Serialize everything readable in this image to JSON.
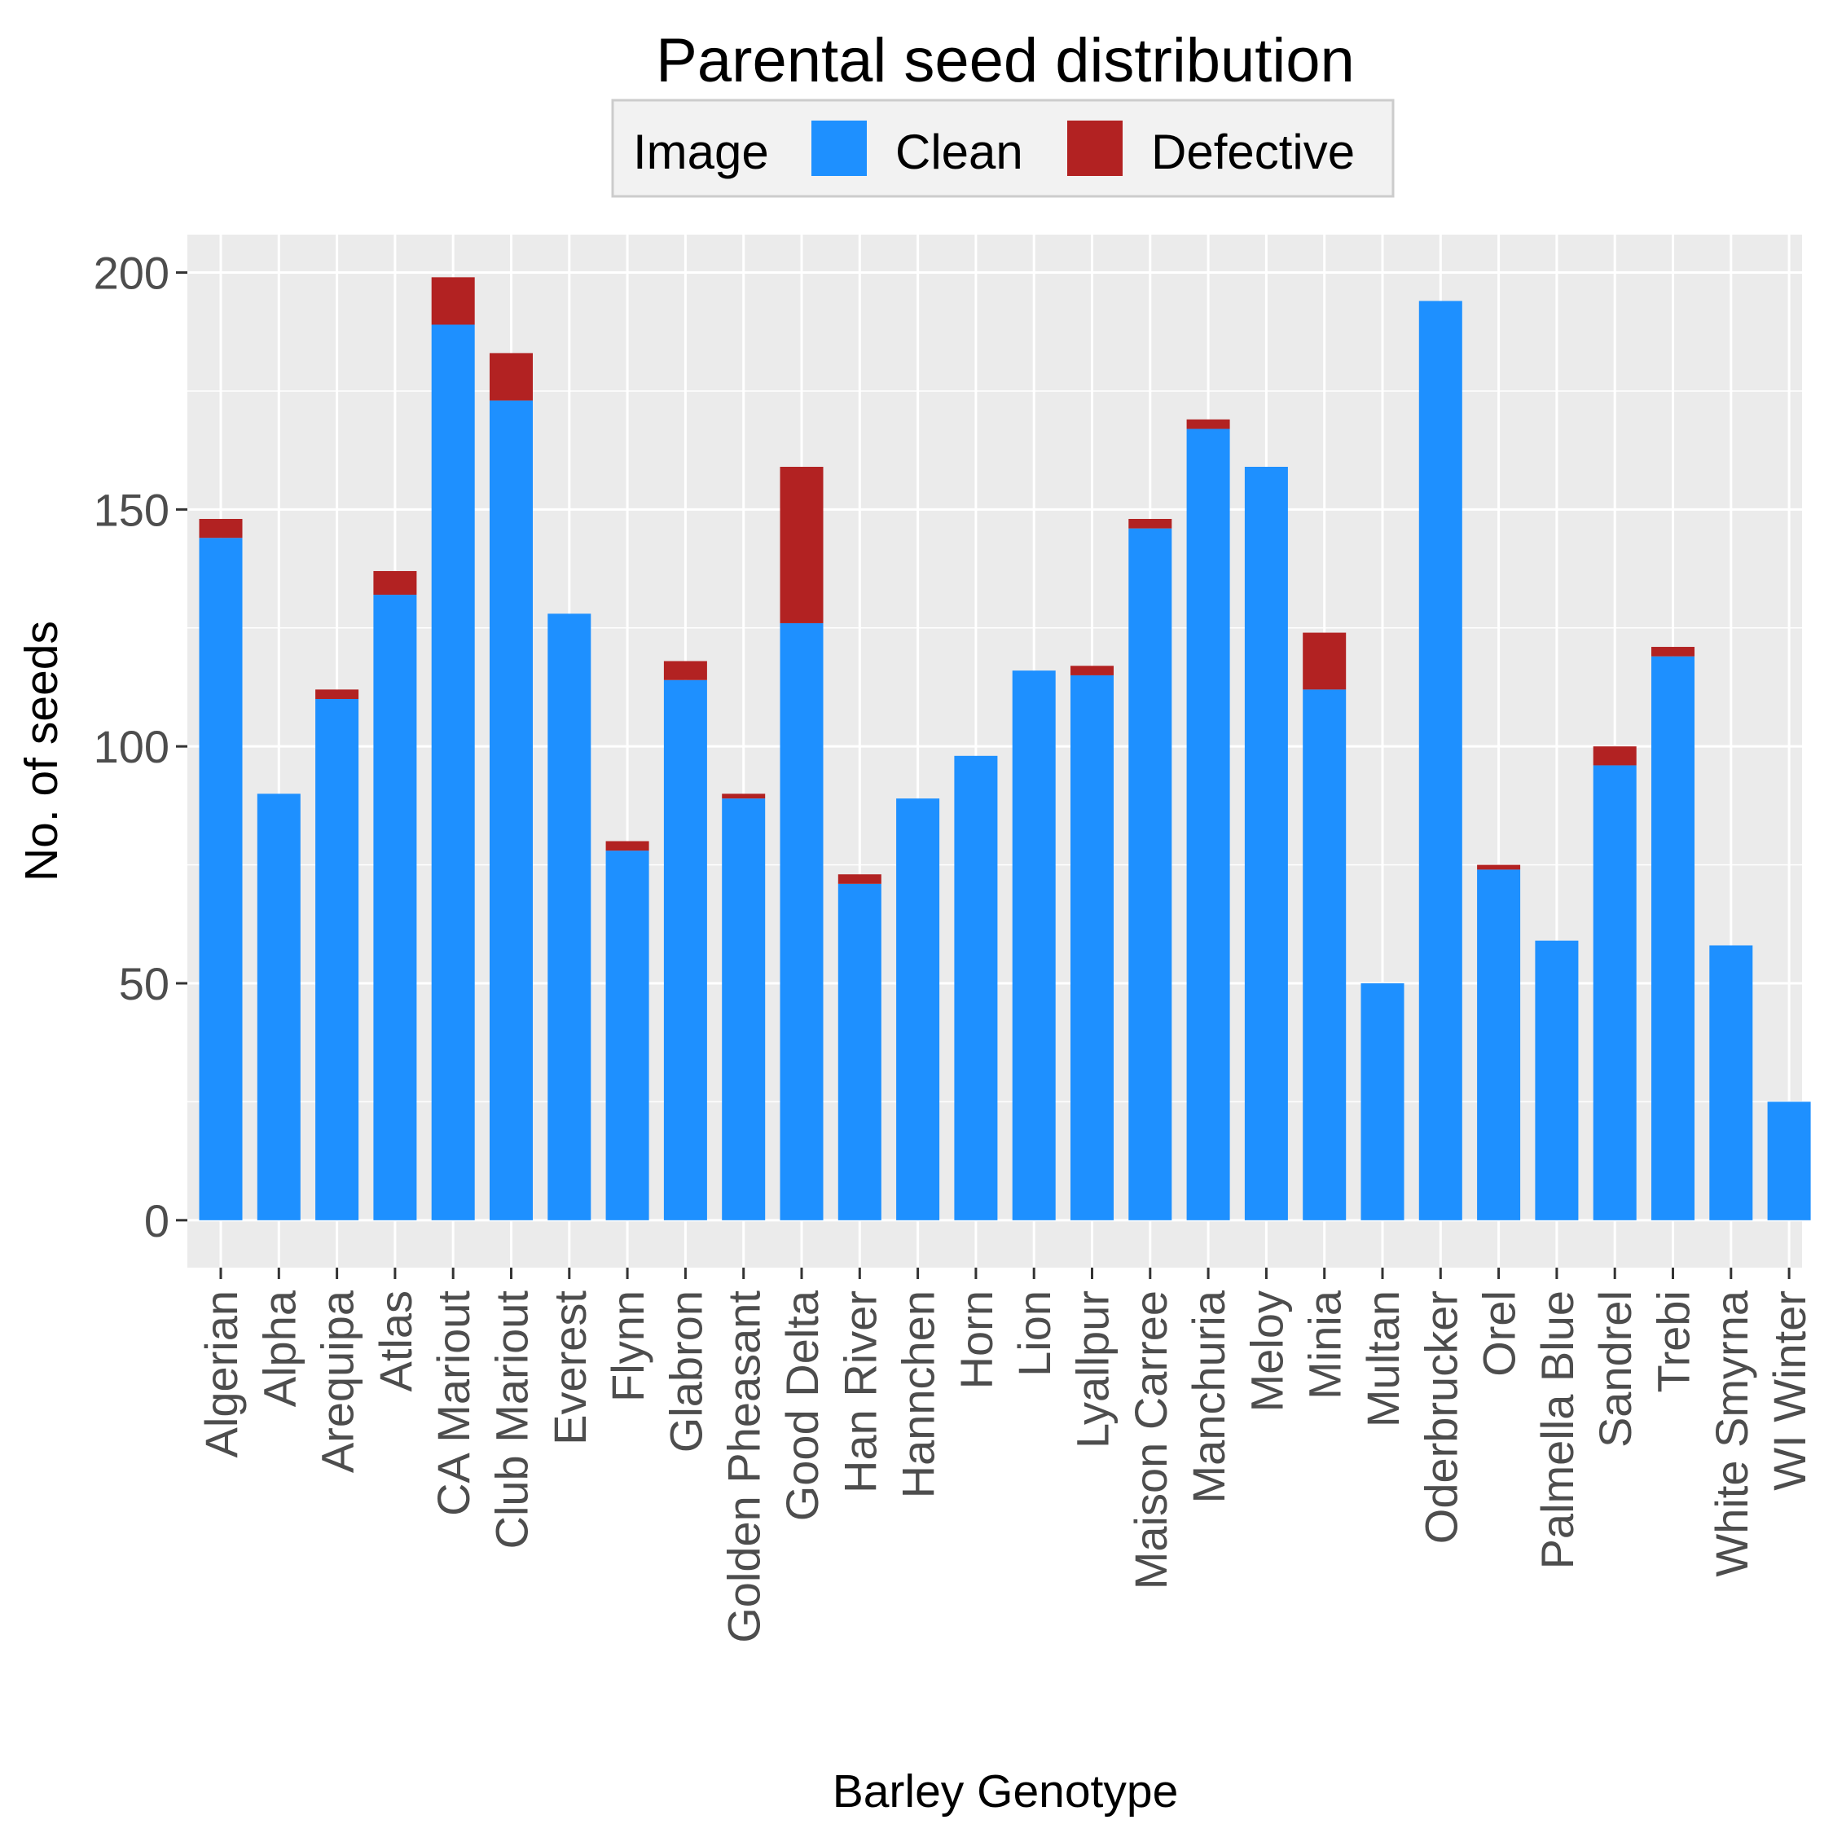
{
  "chart_data": {
    "type": "bar",
    "stacked": true,
    "title": "Parental seed distribution",
    "xlabel": "Barley Genotype",
    "ylabel": "No. of seeds",
    "ylim": [
      -10,
      208
    ],
    "yticks": [
      0,
      50,
      100,
      150,
      200
    ],
    "grid": true,
    "legend": {
      "title": "Image",
      "position": "top"
    },
    "categories": [
      "Algerian",
      "Alpha",
      "Arequipa",
      "Atlas",
      "CA Mariout",
      "Club Mariout",
      "Everest",
      "Flynn",
      "Glabron",
      "Golden Pheasant",
      "Good Delta",
      "Han River",
      "Hannchen",
      "Horn",
      "Lion",
      "Lyallpur",
      "Maison Carree",
      "Manchuria",
      "Meloy",
      "Minia",
      "Multan",
      "Oderbrucker",
      "Orel",
      "Palmella Blue",
      "Sandrel",
      "Trebi",
      "White Smyrna",
      "WI Winter"
    ],
    "series": [
      {
        "name": "Clean",
        "color": "#1E90FF",
        "values": [
          144,
          90,
          110,
          132,
          189,
          173,
          128,
          78,
          114,
          89,
          126,
          71,
          89,
          98,
          116,
          115,
          146,
          167,
          159,
          112,
          50,
          194,
          74,
          59,
          96,
          119,
          58,
          25
        ]
      },
      {
        "name": "Defective",
        "color": "#B22222",
        "values": [
          4,
          0,
          2,
          5,
          10,
          10,
          0,
          2,
          4,
          1,
          33,
          2,
          0,
          0,
          0,
          2,
          2,
          2,
          0,
          12,
          0,
          0,
          1,
          0,
          4,
          2,
          0,
          0
        ]
      }
    ]
  }
}
